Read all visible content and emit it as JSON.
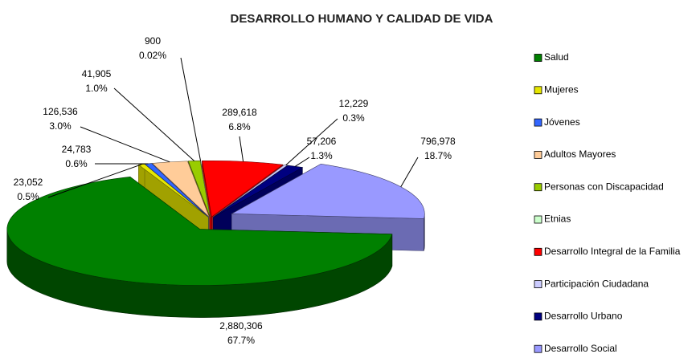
{
  "chart_data": {
    "type": "pie",
    "title": "DESARROLLO HUMANO Y CALIDAD DE VIDA",
    "categories": [
      "Salud",
      "Mujeres",
      "Jóvenes",
      "Adultos Mayores",
      "Personas con Discapacidad",
      "Etnias",
      "Desarrollo Integral de la Familia",
      "Participación Ciudadana",
      "Desarrollo Urbano",
      "Desarrollo Social"
    ],
    "values": [
      2880306,
      23052,
      24783,
      126536,
      41905,
      900,
      289618,
      12229,
      57206,
      796978
    ],
    "value_labels": [
      "2,880,306",
      "23,052",
      "24,783",
      "126,536",
      "41,905",
      "900",
      "289,618",
      "12,229",
      "57,206",
      "796,978"
    ],
    "percent_labels": [
      "67.7%",
      "0.5%",
      "0.6%",
      "3.0%",
      "1.0%",
      "0.02%",
      "6.8%",
      "0.3%",
      "1.3%",
      "18.7%"
    ],
    "colors": [
      "#008000",
      "#e6e600",
      "#3366ff",
      "#ffcc99",
      "#99cc00",
      "#ccffcc",
      "#ff0000",
      "#ccccff",
      "#000080",
      "#9999ff"
    ],
    "legend": "right"
  }
}
